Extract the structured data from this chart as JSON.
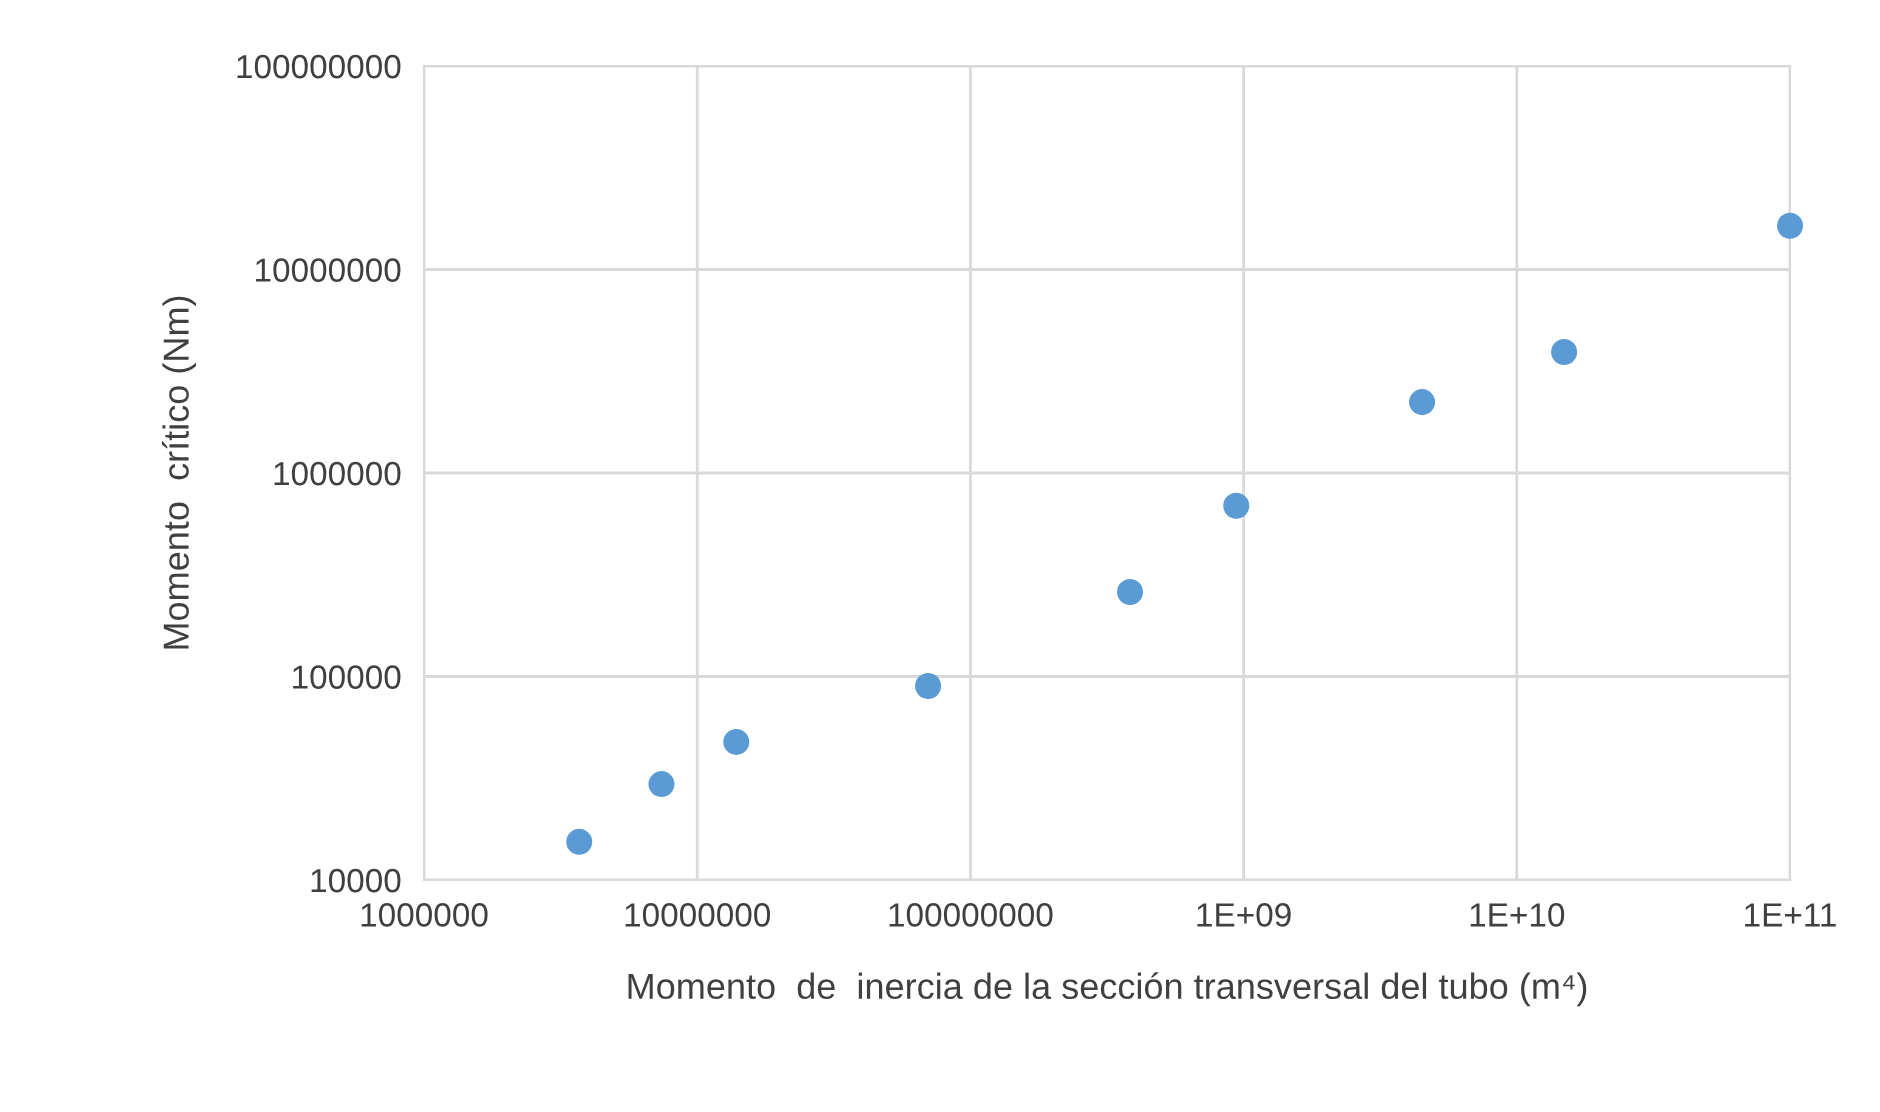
{
  "chart_data": {
    "type": "scatter",
    "xlabel": "Momento  de  inercia de la sección transversal del tubo (m⁴)",
    "ylabel": "Momento  crítico (Nm)",
    "x": [
      3700000,
      7400000,
      13900000,
      70000000,
      384000000,
      940000000,
      4500000000,
      14900000000,
      100000000000
    ],
    "series": [
      {
        "color": "#5b9bd5",
        "values": [
          15400,
          29600,
          47700,
          89800,
          260000,
          690000,
          2230000,
          3930000,
          16400000
        ]
      }
    ],
    "log": "xy",
    "marker": "circle",
    "grid": true,
    "xlim": [
      1000000,
      100000000000
    ],
    "ylim": [
      10000,
      100000000
    ],
    "xticks": [
      1000000,
      10000000,
      100000000,
      {
        "value": 1000000000,
        "label": "1E+09"
      },
      {
        "value": 10000000000,
        "label": "1E+10"
      },
      {
        "value": 100000000000,
        "label": "1E+11"
      }
    ],
    "yticks": [
      10000,
      100000,
      1000000,
      10000000,
      100000000
    ]
  }
}
